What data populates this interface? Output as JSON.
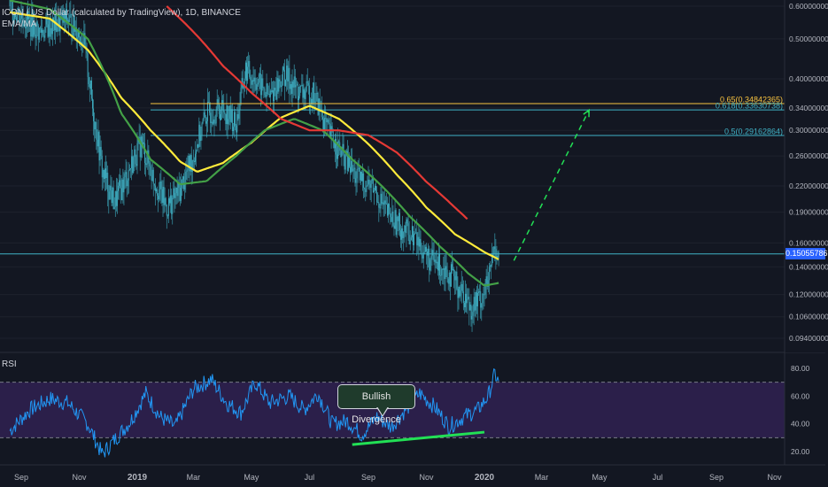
{
  "header": {
    "title": "ICON / US Dollar (calculated by TradingView), 1D, BINANCE",
    "indicators": "EMA/MA"
  },
  "rsi_panel": {
    "label": "RSI"
  },
  "annotation": {
    "label": "Bullish Divergence"
  },
  "current_price": "0.15055786",
  "colors": {
    "background": "#131722",
    "candles": "#3fb2c6",
    "ema_yellow": "#ffeb3b",
    "ma_green": "#43a047",
    "ma_red": "#e53935",
    "rsi_line": "#2196f3",
    "rsi_band": "#2b1f4a",
    "divergence": "#22e055",
    "fib_gold": "#f9c440",
    "fib_teal": "#3fb2c6"
  },
  "chart_data": [
    {
      "type": "line",
      "title": "ICON / US Dollar (calculated by TradingView), 1D, BINANCE",
      "y_scale": "log",
      "y_ticks": [
        "0.60000000",
        "0.50000000",
        "0.40000000",
        "0.34000000",
        "0.30000000",
        "0.26000000",
        "0.22000000",
        "0.19000000",
        "0.16000000",
        "0.14000000",
        "0.12000000",
        "0.10600000",
        "0.09400000"
      ],
      "x_ticks": [
        "Sep",
        "Nov",
        "2019",
        "Mar",
        "May",
        "Jul",
        "Sep",
        "Nov",
        "2020",
        "Mar",
        "May",
        "Jul",
        "Sep",
        "Nov"
      ],
      "fib_levels": [
        {
          "label": "0.65(0.34842365)",
          "value": 0.34842365
        },
        {
          "label": "0.618(0.33630738)",
          "value": 0.33630738
        },
        {
          "label": "0.5(0.29162864)",
          "value": 0.29162864
        }
      ],
      "current_price": 0.15055786,
      "price_path": [
        [
          "2018-08-20",
          0.6
        ],
        [
          "2018-09-05",
          0.56
        ],
        [
          "2018-09-20",
          0.52
        ],
        [
          "2018-10-05",
          0.54
        ],
        [
          "2018-10-20",
          0.56
        ],
        [
          "2018-11-05",
          0.5
        ],
        [
          "2018-11-15",
          0.34
        ],
        [
          "2018-11-25",
          0.24
        ],
        [
          "2018-12-08",
          0.2
        ],
        [
          "2018-12-20",
          0.23
        ],
        [
          "2019-01-05",
          0.28
        ],
        [
          "2019-01-18",
          0.23
        ],
        [
          "2019-02-01",
          0.195
        ],
        [
          "2019-02-15",
          0.215
        ],
        [
          "2019-03-01",
          0.26
        ],
        [
          "2019-03-15",
          0.33
        ],
        [
          "2019-04-01",
          0.34
        ],
        [
          "2019-04-15",
          0.31
        ],
        [
          "2019-04-25",
          0.42
        ],
        [
          "2019-05-05",
          0.4
        ],
        [
          "2019-05-20",
          0.36
        ],
        [
          "2019-06-05",
          0.41
        ],
        [
          "2019-06-20",
          0.37
        ],
        [
          "2019-07-05",
          0.37
        ],
        [
          "2019-07-20",
          0.3
        ],
        [
          "2019-08-05",
          0.26
        ],
        [
          "2019-08-20",
          0.23
        ],
        [
          "2019-09-05",
          0.22
        ],
        [
          "2019-09-20",
          0.19
        ],
        [
          "2019-10-05",
          0.175
        ],
        [
          "2019-10-20",
          0.165
        ],
        [
          "2019-11-05",
          0.145
        ],
        [
          "2019-11-20",
          0.14
        ],
        [
          "2019-12-05",
          0.125
        ],
        [
          "2019-12-18",
          0.112
        ],
        [
          "2019-12-28",
          0.118
        ],
        [
          "2020-01-05",
          0.128
        ],
        [
          "2020-01-12",
          0.158
        ],
        [
          "2020-01-16",
          0.15
        ]
      ],
      "series": [
        {
          "name": "EMA",
          "values": [
            [
              "2018-08-20",
              0.58
            ],
            [
              "2018-10-01",
              0.56
            ],
            [
              "2018-11-10",
              0.47
            ],
            [
              "2018-12-15",
              0.36
            ],
            [
              "2019-01-15",
              0.3
            ],
            [
              "2019-02-15",
              0.252
            ],
            [
              "2019-03-05",
              0.238
            ],
            [
              "2019-04-01",
              0.25
            ],
            [
              "2019-05-01",
              0.28
            ],
            [
              "2019-06-01",
              0.322
            ],
            [
              "2019-07-01",
              0.344
            ],
            [
              "2019-08-01",
              0.32
            ],
            [
              "2019-09-01",
              0.278
            ],
            [
              "2019-10-01",
              0.234
            ],
            [
              "2019-11-01",
              0.195
            ],
            [
              "2019-12-01",
              0.168
            ],
            [
              "2020-01-01",
              0.152
            ],
            [
              "2020-01-16",
              0.146
            ]
          ]
        },
        {
          "name": "MA",
          "values": [
            [
              "2018-08-20",
              0.62
            ],
            [
              "2018-10-01",
              0.59
            ],
            [
              "2018-11-10",
              0.5
            ],
            [
              "2018-12-15",
              0.33
            ],
            [
              "2019-01-15",
              0.255
            ],
            [
              "2019-02-15",
              0.222
            ],
            [
              "2019-03-15",
              0.226
            ],
            [
              "2019-04-15",
              0.26
            ],
            [
              "2019-05-15",
              0.3
            ],
            [
              "2019-06-15",
              0.32
            ],
            [
              "2019-07-15",
              0.3
            ],
            [
              "2019-08-15",
              0.255
            ],
            [
              "2019-09-15",
              0.22
            ],
            [
              "2019-10-15",
              0.185
            ],
            [
              "2019-11-15",
              0.157
            ],
            [
              "2019-12-15",
              0.135
            ],
            [
              "2020-01-01",
              0.126
            ],
            [
              "2020-01-16",
              0.128
            ]
          ]
        },
        {
          "name": "MA",
          "values": [
            [
              "2019-02-01",
              0.6
            ],
            [
              "2019-03-01",
              0.52
            ],
            [
              "2019-04-01",
              0.43
            ],
            [
              "2019-05-01",
              0.37
            ],
            [
              "2019-06-01",
              0.32
            ],
            [
              "2019-07-01",
              0.3
            ],
            [
              "2019-08-01",
              0.3
            ],
            [
              "2019-09-01",
              0.292
            ],
            [
              "2019-10-01",
              0.265
            ],
            [
              "2019-11-01",
              0.225
            ],
            [
              "2019-12-01",
              0.195
            ],
            [
              "2019-12-15",
              0.182
            ]
          ]
        }
      ],
      "projection": [
        [
          "2020-02-01",
          0.145
        ],
        [
          "2020-04-20",
          0.336
        ]
      ]
    },
    {
      "type": "line",
      "title": "RSI",
      "ylim": [
        10,
        85
      ],
      "y_ticks": [
        "80.00",
        "60.00",
        "40.00",
        "20.00"
      ],
      "band": [
        30,
        70
      ],
      "rsi": [
        [
          "2018-08-20",
          35
        ],
        [
          "2018-09-10",
          50
        ],
        [
          "2018-10-01",
          58
        ],
        [
          "2018-10-20",
          55
        ],
        [
          "2018-11-10",
          40
        ],
        [
          "2018-11-25",
          18
        ],
        [
          "2018-12-10",
          30
        ],
        [
          "2018-12-25",
          42
        ],
        [
          "2019-01-10",
          62
        ],
        [
          "2019-01-25",
          45
        ],
        [
          "2019-02-10",
          38
        ],
        [
          "2019-03-01",
          65
        ],
        [
          "2019-03-20",
          72
        ],
        [
          "2019-04-05",
          55
        ],
        [
          "2019-04-20",
          48
        ],
        [
          "2019-05-05",
          70
        ],
        [
          "2019-05-20",
          55
        ],
        [
          "2019-06-10",
          60
        ],
        [
          "2019-06-25",
          50
        ],
        [
          "2019-07-10",
          62
        ],
        [
          "2019-07-25",
          40
        ],
        [
          "2019-08-10",
          42
        ],
        [
          "2019-08-25",
          32
        ],
        [
          "2019-09-10",
          45
        ],
        [
          "2019-09-25",
          38
        ],
        [
          "2019-10-10",
          50
        ],
        [
          "2019-10-25",
          62
        ],
        [
          "2019-11-10",
          52
        ],
        [
          "2019-11-25",
          38
        ],
        [
          "2019-12-10",
          45
        ],
        [
          "2019-12-25",
          50
        ],
        [
          "2020-01-05",
          60
        ],
        [
          "2020-01-12",
          76
        ],
        [
          "2020-01-16",
          70
        ]
      ],
      "divergence_line": [
        [
          "2019-08-15",
          25
        ],
        [
          "2020-01-01",
          34
        ]
      ]
    }
  ]
}
